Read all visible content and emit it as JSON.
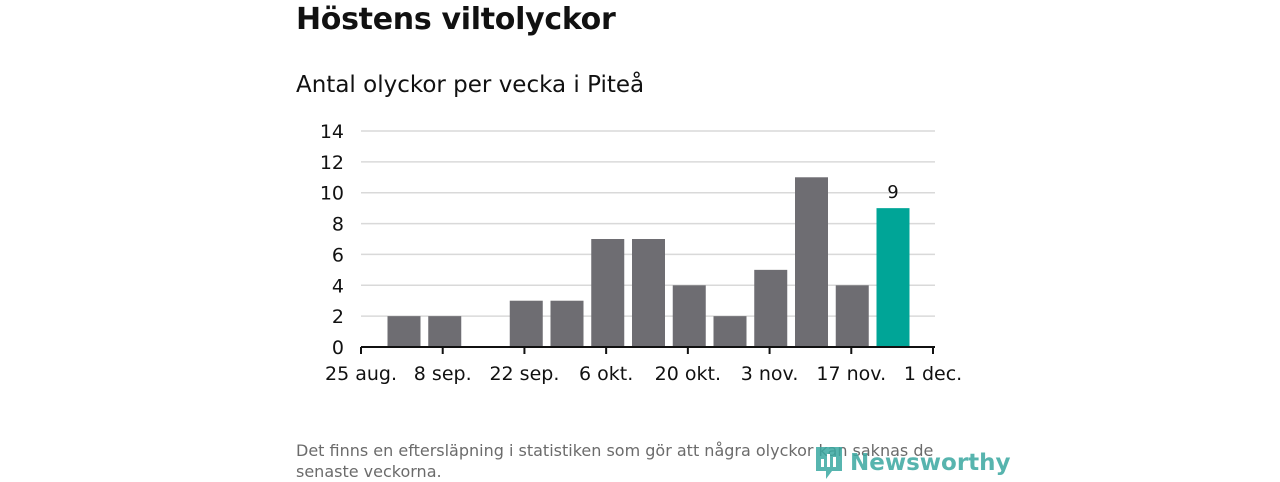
{
  "header": {
    "title": "Höstens viltolyckor",
    "subtitle": "Antal olyckor per vecka i Piteå"
  },
  "footer": {
    "note": "Det finns en eftersläpning i statistiken som gör att några olyckor kan saknas de senaste veckorna.",
    "brand": "Newsworthy"
  },
  "colors": {
    "bar": "#6e6d72",
    "highlight": "#00a597",
    "grid": "#d9d9d9",
    "axis": "#111111",
    "brand": "#3aa8a1"
  },
  "chart_data": {
    "type": "bar",
    "title": "Antal olyckor per vecka i Piteå",
    "x_ticks": [
      "25 aug.",
      "8 sep.",
      "22 sep.",
      "6 okt.",
      "20 okt.",
      "3 nov.",
      "17 nov.",
      "1 dec."
    ],
    "values": [
      2,
      2,
      0,
      3,
      3,
      7,
      7,
      4,
      2,
      5,
      11,
      4,
      9
    ],
    "highlight_index": 12,
    "highlight_label": "9",
    "ylim": [
      0,
      14
    ],
    "y_ticks": [
      0,
      2,
      4,
      6,
      8,
      10,
      12,
      14
    ],
    "grid": true
  }
}
